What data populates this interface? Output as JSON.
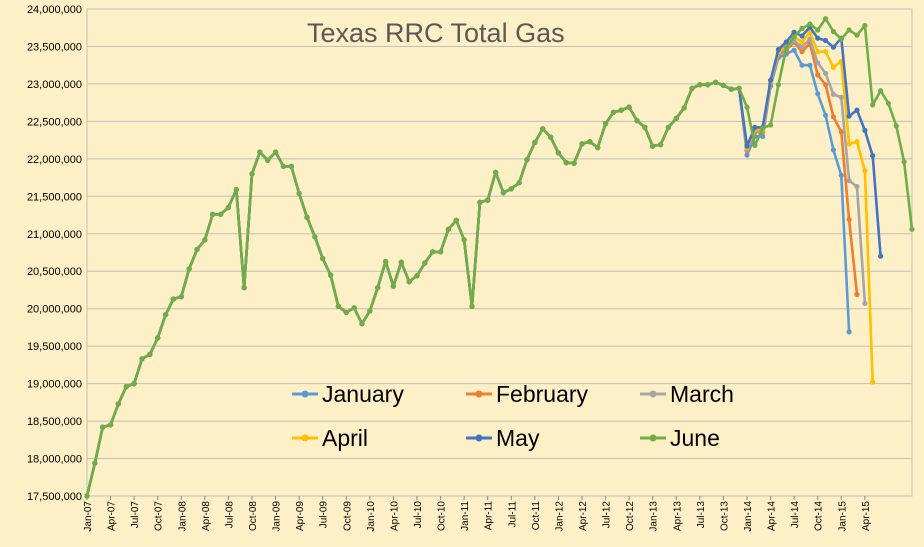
{
  "chart_data": {
    "type": "line",
    "title": "Texas RRC Total Gas",
    "xlabel": "",
    "ylabel": "",
    "ylim": [
      17500000,
      24000000
    ],
    "y_ticks": [
      "17,500,000",
      "18,000,000",
      "18,500,000",
      "19,000,000",
      "19,500,000",
      "20,000,000",
      "20,500,000",
      "21,000,000",
      "21,500,000",
      "22,000,000",
      "22,500,000",
      "23,000,000",
      "23,500,000",
      "24,000,000"
    ],
    "x_tick_labels": [
      "Jan-07",
      "Apr-07",
      "Jul-07",
      "Oct-07",
      "Jan-08",
      "Apr-08",
      "Jul-08",
      "Oct-08",
      "Jan-09",
      "Apr-09",
      "Jul-09",
      "Oct-09",
      "Jan-10",
      "Apr-10",
      "Jul-10",
      "Oct-10",
      "Jan-11",
      "Apr-11",
      "Jul-11",
      "Oct-11",
      "Jan-12",
      "Apr-12",
      "Jul-12",
      "Oct-12",
      "Jan-13",
      "Apr-13",
      "Jul-13",
      "Oct-13",
      "Jan-14",
      "Apr-14",
      "Jul-14",
      "Oct-14",
      "Jan-15",
      "Apr-15"
    ],
    "start": "Jan-07",
    "grid": true,
    "legend_position": "center",
    "base": [
      17500000,
      17940000,
      18420000,
      18450000,
      18730000,
      18960000,
      19000000,
      19330000,
      19390000,
      19610000,
      19920000,
      20130000,
      20160000,
      20530000,
      20790000,
      20920000,
      21260000,
      21260000,
      21350000,
      21590000,
      20280000,
      21800000,
      22090000,
      21980000,
      22090000,
      21900000,
      21900000,
      21540000,
      21220000,
      20960000,
      20670000,
      20450000,
      20030000,
      19950000,
      20010000,
      19800000,
      19970000,
      20280000,
      20630000,
      20300000,
      20620000,
      20360000,
      20440000,
      20610000,
      20760000,
      20760000,
      21060000,
      21180000,
      20920000,
      20030000,
      21420000,
      21450000,
      21820000,
      21550000,
      21600000,
      21680000,
      21990000,
      22220000,
      22400000,
      22290000,
      22080000,
      21950000,
      21940000,
      22200000,
      22230000,
      22150000,
      22470000,
      22620000,
      22650000,
      22690000,
      22510000,
      22420000,
      22170000,
      22190000,
      22420000,
      22540000,
      22680000,
      22940000,
      22990000,
      22990000,
      23020000,
      22980000,
      22930000,
      22940000,
      22690000,
      22180000,
      22410000,
      22450000,
      22990000,
      23480000,
      23630000,
      23740000,
      23800000,
      23720000,
      23870000,
      23700000,
      23600000,
      23720000,
      23650000,
      23780000,
      22720000,
      22910000,
      22740000,
      22440000,
      21960000,
      21060000
    ],
    "series": [
      {
        "name": "January",
        "color": "#5b9bd5",
        "x": [
          84,
          85,
          86,
          87,
          88,
          89,
          90,
          91,
          92,
          93,
          94,
          95,
          96
        ],
        "values": [
          22050000,
          22300000,
          22300000,
          22970000,
          23350000,
          23400000,
          23450000,
          23250000,
          23250000,
          22870000,
          22580000,
          22120000,
          21780000
        ]
      },
      {
        "name": "February",
        "color": "#ed7d31",
        "x": [
          84,
          85,
          86,
          87,
          88,
          89,
          90,
          91,
          92,
          93,
          94,
          95,
          96,
          97
        ],
        "values": [
          22110000,
          22360000,
          22360000,
          23000000,
          23390000,
          23450000,
          23560000,
          23430000,
          23540000,
          23120000,
          22990000,
          22560000,
          22360000,
          21190000
        ]
      },
      {
        "name": "March",
        "color": "#a5a5a5",
        "x": [
          84,
          85,
          86,
          87,
          88,
          89,
          90,
          91,
          92,
          93,
          94,
          95,
          96,
          97,
          98
        ],
        "values": [
          22130000,
          22380000,
          22380000,
          23010000,
          23410000,
          23480000,
          23580000,
          23490000,
          23600000,
          23280000,
          23140000,
          22860000,
          22820000,
          21710000,
          21630000
        ]
      },
      {
        "name": "April",
        "color": "#ffc000",
        "x": [
          84,
          85,
          86,
          87,
          88,
          89,
          90,
          91,
          92,
          93,
          94,
          95,
          96,
          97,
          98,
          99
        ],
        "values": [
          22150000,
          22400000,
          22400000,
          23030000,
          23430000,
          23520000,
          23630000,
          23560000,
          23690000,
          23430000,
          23430000,
          23220000,
          23300000,
          22200000,
          22230000,
          21840000
        ]
      },
      {
        "name": "May",
        "color": "#4472c4",
        "x": [
          84,
          85,
          86,
          87,
          88,
          89,
          90,
          91,
          92,
          93,
          94,
          95,
          96,
          97,
          98,
          99,
          100
        ],
        "values": [
          22170000,
          22420000,
          22420000,
          23050000,
          23460000,
          23560000,
          23690000,
          23640000,
          23760000,
          23610000,
          23580000,
          23490000,
          23610000,
          22570000,
          22650000,
          22380000,
          22040000
        ]
      },
      {
        "name": "June",
        "color": "#70ad47",
        "x": [],
        "values": []
      }
    ],
    "series_tails": {
      "January": [
        {
          "x": 97,
          "y": 19690000
        }
      ],
      "February": [
        {
          "x": 98,
          "y": 20190000
        }
      ],
      "March": [
        {
          "x": 99,
          "y": 20070000
        }
      ],
      "April": [
        {
          "x": 100,
          "y": 19020000
        }
      ],
      "May": [
        {
          "x": 101,
          "y": 20700000
        }
      ]
    }
  }
}
